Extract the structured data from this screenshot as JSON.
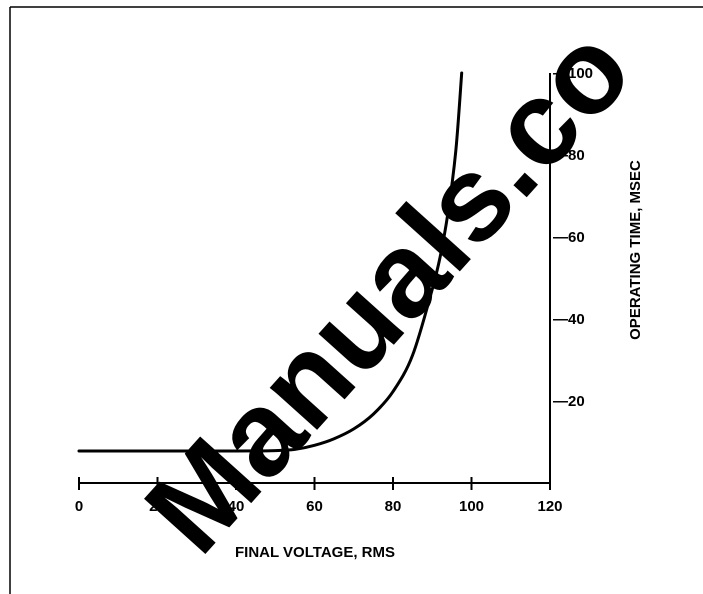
{
  "chart_data": {
    "type": "line",
    "title": "",
    "xlabel": "FINAL VOLTAGE, RMS",
    "ylabel": "OPERATING TIME, MSEC",
    "xlim": [
      0,
      120
    ],
    "ylim": [
      0,
      100
    ],
    "x_ticks": [
      0,
      20,
      40,
      60,
      80,
      100,
      120
    ],
    "y_ticks": [
      20,
      40,
      60,
      80,
      100
    ],
    "y_tick_labels": [
      "—20",
      "—40",
      "—60",
      "—80",
      "—100"
    ],
    "y_axis_position": "right",
    "grid": false,
    "series": [
      {
        "points": [
          [
            0,
            7.8
          ],
          [
            10,
            7.8
          ],
          [
            20,
            7.8
          ],
          [
            30,
            7.8
          ],
          [
            40,
            7.8
          ],
          [
            50,
            7.9
          ],
          [
            55,
            8.2
          ],
          [
            60,
            9.2
          ],
          [
            65,
            10.8
          ],
          [
            70,
            13.2
          ],
          [
            75,
            16.8
          ],
          [
            80,
            22.3
          ],
          [
            85,
            31.2
          ],
          [
            90,
            47.3
          ],
          [
            92,
            55.1
          ],
          [
            94,
            65.8
          ],
          [
            96,
            81.0
          ],
          [
            97.5,
            100
          ]
        ]
      }
    ]
  },
  "watermark": "Manuals.co",
  "colors": {
    "line": "#000000",
    "background": "#ffffff"
  }
}
